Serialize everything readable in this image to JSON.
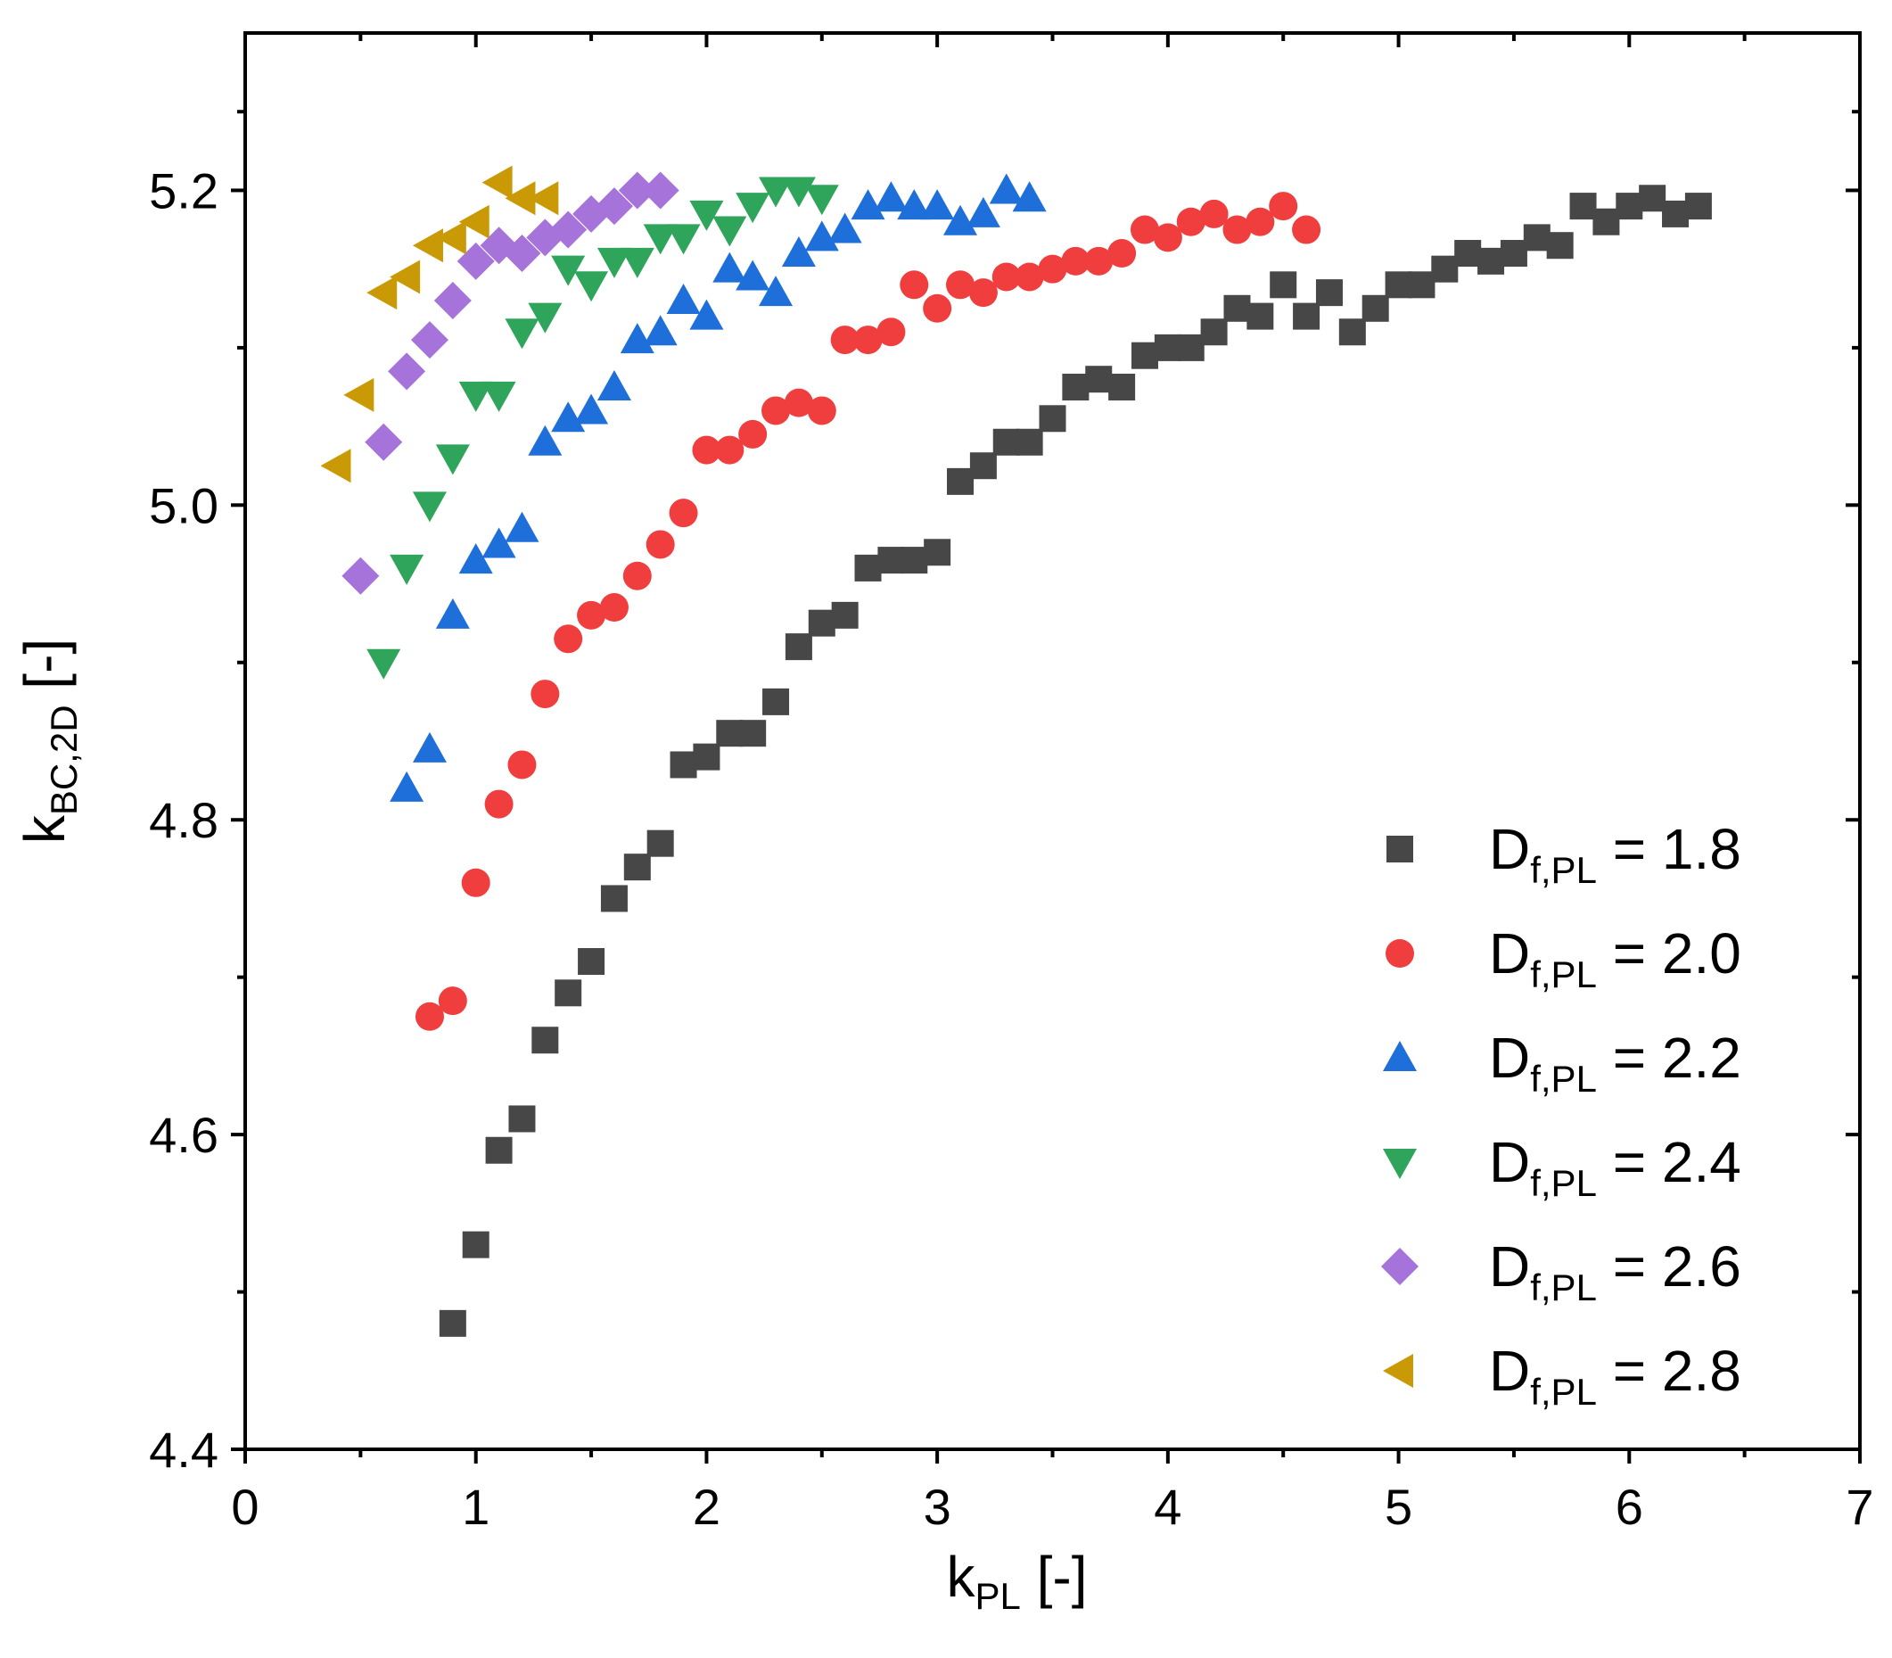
{
  "chart_data": {
    "type": "scatter",
    "xlabel": {
      "main": "k",
      "sub": "PL",
      "suffix": " [-]"
    },
    "ylabel": {
      "main": "k",
      "sub": "BC,2D",
      "suffix": " [-]"
    },
    "xlim": [
      0,
      7
    ],
    "ylim": [
      4.4,
      5.3
    ],
    "xticks": [
      0,
      1,
      2,
      3,
      4,
      5,
      6,
      7
    ],
    "xtick_labels": [
      "0",
      "1",
      "2",
      "3",
      "4",
      "5",
      "6",
      "7"
    ],
    "yticks": [
      4.4,
      4.6,
      4.8,
      5.0,
      5.2
    ],
    "ytick_labels": [
      "4.4",
      "4.6",
      "4.8",
      "5.0",
      "5.2"
    ],
    "legend_position": "bottom-right",
    "series": [
      {
        "name": "1.8",
        "label_main": "D",
        "label_sub": "f,PL",
        "label_suffix": " = 1.8",
        "marker": "square",
        "color": "#474747",
        "points": [
          [
            0.9,
            4.48
          ],
          [
            1.0,
            4.53
          ],
          [
            1.1,
            4.59
          ],
          [
            1.2,
            4.61
          ],
          [
            1.3,
            4.66
          ],
          [
            1.4,
            4.69
          ],
          [
            1.5,
            4.71
          ],
          [
            1.6,
            4.75
          ],
          [
            1.7,
            4.77
          ],
          [
            1.8,
            4.785
          ],
          [
            1.9,
            4.835
          ],
          [
            2.0,
            4.84
          ],
          [
            2.1,
            4.855
          ],
          [
            2.2,
            4.855
          ],
          [
            2.3,
            4.875
          ],
          [
            2.4,
            4.91
          ],
          [
            2.5,
            4.925
          ],
          [
            2.6,
            4.93
          ],
          [
            2.7,
            4.96
          ],
          [
            2.8,
            4.965
          ],
          [
            2.9,
            4.965
          ],
          [
            3.0,
            4.97
          ],
          [
            3.1,
            5.015
          ],
          [
            3.2,
            5.025
          ],
          [
            3.3,
            5.04
          ],
          [
            3.4,
            5.04
          ],
          [
            3.5,
            5.055
          ],
          [
            3.6,
            5.075
          ],
          [
            3.7,
            5.08
          ],
          [
            3.8,
            5.075
          ],
          [
            3.9,
            5.095
          ],
          [
            4.0,
            5.1
          ],
          [
            4.1,
            5.1
          ],
          [
            4.2,
            5.11
          ],
          [
            4.3,
            5.125
          ],
          [
            4.4,
            5.12
          ],
          [
            4.5,
            5.14
          ],
          [
            4.6,
            5.12
          ],
          [
            4.7,
            5.135
          ],
          [
            4.8,
            5.11
          ],
          [
            4.9,
            5.125
          ],
          [
            5.0,
            5.14
          ],
          [
            5.1,
            5.14
          ],
          [
            5.2,
            5.15
          ],
          [
            5.3,
            5.16
          ],
          [
            5.4,
            5.155
          ],
          [
            5.5,
            5.16
          ],
          [
            5.6,
            5.17
          ],
          [
            5.7,
            5.165
          ],
          [
            5.8,
            5.19
          ],
          [
            5.9,
            5.18
          ],
          [
            6.0,
            5.19
          ],
          [
            6.1,
            5.195
          ],
          [
            6.2,
            5.185
          ],
          [
            6.3,
            5.19
          ]
        ]
      },
      {
        "name": "2.0",
        "label_main": "D",
        "label_sub": "f,PL",
        "label_suffix": " = 2.0",
        "marker": "circle",
        "color": "#f03e3e",
        "points": [
          [
            0.8,
            4.675
          ],
          [
            0.9,
            4.685
          ],
          [
            1.0,
            4.76
          ],
          [
            1.1,
            4.81
          ],
          [
            1.2,
            4.835
          ],
          [
            1.3,
            4.88
          ],
          [
            1.4,
            4.915
          ],
          [
            1.5,
            4.93
          ],
          [
            1.6,
            4.935
          ],
          [
            1.7,
            4.955
          ],
          [
            1.8,
            4.975
          ],
          [
            1.9,
            4.995
          ],
          [
            2.0,
            5.035
          ],
          [
            2.1,
            5.035
          ],
          [
            2.2,
            5.045
          ],
          [
            2.3,
            5.06
          ],
          [
            2.4,
            5.065
          ],
          [
            2.5,
            5.06
          ],
          [
            2.6,
            5.105
          ],
          [
            2.7,
            5.105
          ],
          [
            2.8,
            5.11
          ],
          [
            2.9,
            5.14
          ],
          [
            3.0,
            5.125
          ],
          [
            3.1,
            5.14
          ],
          [
            3.2,
            5.135
          ],
          [
            3.3,
            5.145
          ],
          [
            3.4,
            5.145
          ],
          [
            3.5,
            5.15
          ],
          [
            3.6,
            5.155
          ],
          [
            3.7,
            5.155
          ],
          [
            3.8,
            5.16
          ],
          [
            3.9,
            5.175
          ],
          [
            4.0,
            5.17
          ],
          [
            4.1,
            5.18
          ],
          [
            4.2,
            5.185
          ],
          [
            4.3,
            5.175
          ],
          [
            4.4,
            5.18
          ],
          [
            4.5,
            5.19
          ],
          [
            4.6,
            5.175
          ]
        ]
      },
      {
        "name": "2.2",
        "label_main": "D",
        "label_sub": "f,PL",
        "label_suffix": " = 2.2",
        "marker": "triangle-up",
        "color": "#1f6fdb",
        "points": [
          [
            0.7,
            4.82
          ],
          [
            0.8,
            4.845
          ],
          [
            0.9,
            4.93
          ],
          [
            1.0,
            4.965
          ],
          [
            1.1,
            4.975
          ],
          [
            1.2,
            4.985
          ],
          [
            1.3,
            5.04
          ],
          [
            1.4,
            5.055
          ],
          [
            1.5,
            5.06
          ],
          [
            1.6,
            5.075
          ],
          [
            1.7,
            5.105
          ],
          [
            1.8,
            5.11
          ],
          [
            1.9,
            5.13
          ],
          [
            2.0,
            5.12
          ],
          [
            2.1,
            5.15
          ],
          [
            2.2,
            5.145
          ],
          [
            2.3,
            5.135
          ],
          [
            2.4,
            5.16
          ],
          [
            2.5,
            5.17
          ],
          [
            2.6,
            5.175
          ],
          [
            2.7,
            5.19
          ],
          [
            2.8,
            5.195
          ],
          [
            2.9,
            5.19
          ],
          [
            3.0,
            5.19
          ],
          [
            3.1,
            5.18
          ],
          [
            3.2,
            5.185
          ],
          [
            3.3,
            5.2
          ],
          [
            3.4,
            5.195
          ]
        ]
      },
      {
        "name": "2.4",
        "label_main": "D",
        "label_sub": "f,PL",
        "label_suffix": " = 2.4",
        "marker": "triangle-down",
        "color": "#2ea55a",
        "points": [
          [
            0.6,
            4.9
          ],
          [
            0.7,
            4.96
          ],
          [
            0.8,
            5.0
          ],
          [
            0.9,
            5.03
          ],
          [
            1.0,
            5.07
          ],
          [
            1.1,
            5.07
          ],
          [
            1.2,
            5.11
          ],
          [
            1.3,
            5.12
          ],
          [
            1.4,
            5.15
          ],
          [
            1.5,
            5.14
          ],
          [
            1.6,
            5.155
          ],
          [
            1.7,
            5.155
          ],
          [
            1.8,
            5.17
          ],
          [
            1.9,
            5.17
          ],
          [
            2.0,
            5.185
          ],
          [
            2.1,
            5.175
          ],
          [
            2.2,
            5.19
          ],
          [
            2.3,
            5.2
          ],
          [
            2.4,
            5.2
          ],
          [
            2.5,
            5.195
          ]
        ]
      },
      {
        "name": "2.6",
        "label_main": "D",
        "label_sub": "f,PL",
        "label_suffix": " = 2.6",
        "marker": "diamond",
        "color": "#a673db",
        "points": [
          [
            0.5,
            4.955
          ],
          [
            0.6,
            5.04
          ],
          [
            0.7,
            5.085
          ],
          [
            0.8,
            5.105
          ],
          [
            0.9,
            5.13
          ],
          [
            1.0,
            5.155
          ],
          [
            1.1,
            5.165
          ],
          [
            1.2,
            5.16
          ],
          [
            1.3,
            5.17
          ],
          [
            1.4,
            5.175
          ],
          [
            1.5,
            5.185
          ],
          [
            1.6,
            5.19
          ],
          [
            1.7,
            5.2
          ],
          [
            1.8,
            5.2
          ]
        ]
      },
      {
        "name": "2.8",
        "label_main": "D",
        "label_sub": "f,PL",
        "label_suffix": " = 2.8",
        "marker": "triangle-left",
        "color": "#c99a06",
        "points": [
          [
            0.4,
            5.025
          ],
          [
            0.5,
            5.07
          ],
          [
            0.6,
            5.135
          ],
          [
            0.7,
            5.145
          ],
          [
            0.8,
            5.165
          ],
          [
            0.9,
            5.17
          ],
          [
            1.0,
            5.18
          ],
          [
            1.1,
            5.205
          ],
          [
            1.2,
            5.195
          ],
          [
            1.3,
            5.195
          ]
        ]
      }
    ]
  }
}
